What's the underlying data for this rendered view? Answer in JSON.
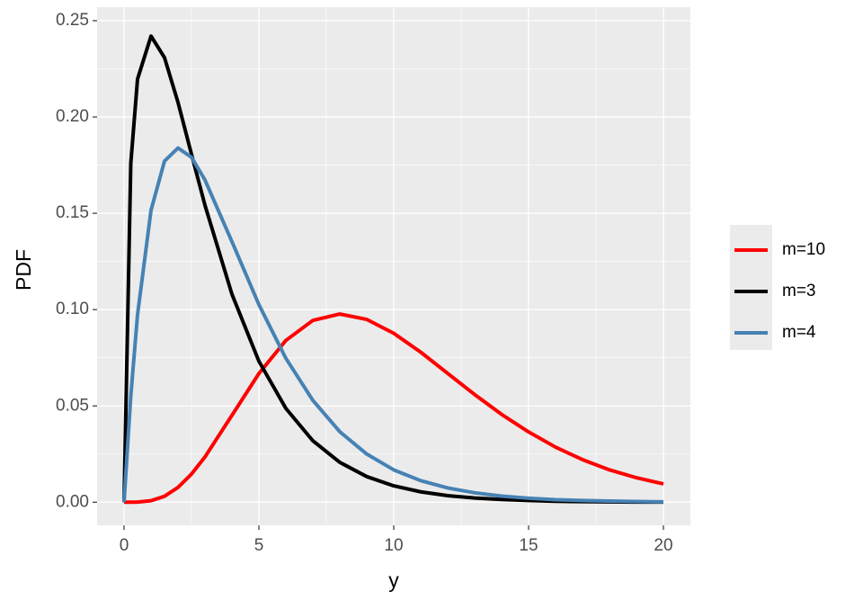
{
  "chart_data": {
    "type": "line",
    "x_label": "y",
    "y_label": "PDF",
    "x": [
      0,
      0.25,
      0.5,
      1,
      1.5,
      2,
      2.5,
      3,
      4,
      5,
      6,
      7,
      8,
      9,
      10,
      11,
      12,
      13,
      14,
      15,
      16,
      17,
      18,
      19,
      20
    ],
    "series": [
      {
        "name": "m=10",
        "color": "#ff0000",
        "values": [
          0,
          0,
          0.0001,
          0.0008,
          0.0031,
          0.0077,
          0.0146,
          0.0235,
          0.0451,
          0.0668,
          0.084,
          0.0944,
          0.0977,
          0.0949,
          0.0877,
          0.0779,
          0.0669,
          0.0559,
          0.0456,
          0.0365,
          0.0286,
          0.0221,
          0.0168,
          0.0127,
          0.0095
        ]
      },
      {
        "name": "m=3",
        "color": "#000000",
        "values": [
          0,
          0.176,
          0.2197,
          0.242,
          0.2308,
          0.2076,
          0.1807,
          0.1542,
          0.108,
          0.0732,
          0.0487,
          0.0319,
          0.0207,
          0.0133,
          0.0085,
          0.0054,
          0.0034,
          0.0022,
          0.0014,
          0.0009,
          0.0005,
          0.0003,
          0.0002,
          0.0001,
          0.0001
        ]
      },
      {
        "name": "m=4",
        "color": "#4682b4",
        "values": [
          0,
          0.0552,
          0.0974,
          0.1516,
          0.1771,
          0.1839,
          0.1791,
          0.1673,
          0.1353,
          0.1026,
          0.0747,
          0.0529,
          0.0366,
          0.025,
          0.0168,
          0.0112,
          0.0074,
          0.0049,
          0.0032,
          0.0021,
          0.0013,
          0.0009,
          0.0006,
          0.0004,
          0.0002
        ]
      }
    ],
    "xlim": [
      -1,
      21
    ],
    "ylim": [
      -0.012,
      0.257
    ],
    "xticks": [
      0,
      5,
      10,
      15,
      20
    ],
    "yticks": [
      {
        "value": 0,
        "label": "0.00"
      },
      {
        "value": 0.05,
        "label": "0.05"
      },
      {
        "value": 0.1,
        "label": "0.10"
      },
      {
        "value": 0.15,
        "label": "0.15"
      },
      {
        "value": 0.2,
        "label": "0.20"
      },
      {
        "value": 0.25,
        "label": "0.25"
      }
    ],
    "grid": true,
    "legend": "right"
  }
}
